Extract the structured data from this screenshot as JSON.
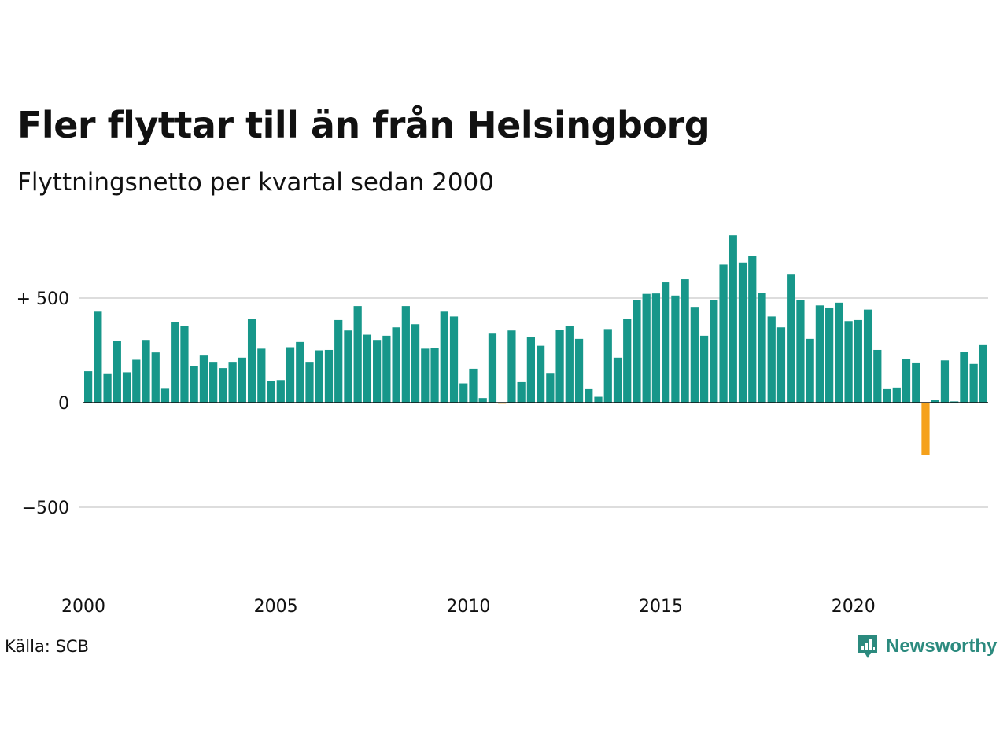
{
  "chart_data": {
    "type": "bar",
    "title": "Fler flyttar till än från Helsingborg",
    "subtitle": "Flyttningsnetto per kvartal sedan 2000",
    "source": "Källa: SCB",
    "x_ticks": [
      2000,
      2005,
      2010,
      2015,
      2020
    ],
    "y_ticks": [
      {
        "value": 500,
        "label": "+ 500"
      },
      {
        "value": 0,
        "label": "0"
      },
      {
        "value": -500,
        "label": "−500"
      }
    ],
    "ylim": [
      -850,
      1000
    ],
    "xlim": [
      2000.0,
      2023.75
    ],
    "grid": true,
    "start_year": 2000,
    "positive_color": "#17978a",
    "negative_color": "#f5a11c",
    "values": [
      150,
      435,
      140,
      295,
      145,
      205,
      300,
      240,
      70,
      385,
      368,
      175,
      225,
      195,
      165,
      195,
      215,
      400,
      258,
      102,
      108,
      265,
      290,
      195,
      250,
      252,
      395,
      345,
      462,
      325,
      300,
      320,
      360,
      462,
      375,
      258,
      262,
      435,
      412,
      92,
      162,
      22,
      330,
      -5,
      345,
      98,
      312,
      272,
      142,
      348,
      368,
      305,
      68,
      28,
      352,
      215,
      400,
      492,
      520,
      522,
      575,
      512,
      590,
      458,
      320,
      492,
      660,
      800,
      670,
      700,
      525,
      412,
      360,
      612,
      492,
      305,
      465,
      455,
      478,
      390,
      395,
      445,
      252,
      68,
      72,
      208,
      192,
      -250,
      12,
      202,
      6,
      242,
      185,
      275
    ]
  },
  "brand": {
    "name": "Newsworthy",
    "icon": "newsworthy-logo-icon",
    "color": "#2b8a7e"
  }
}
